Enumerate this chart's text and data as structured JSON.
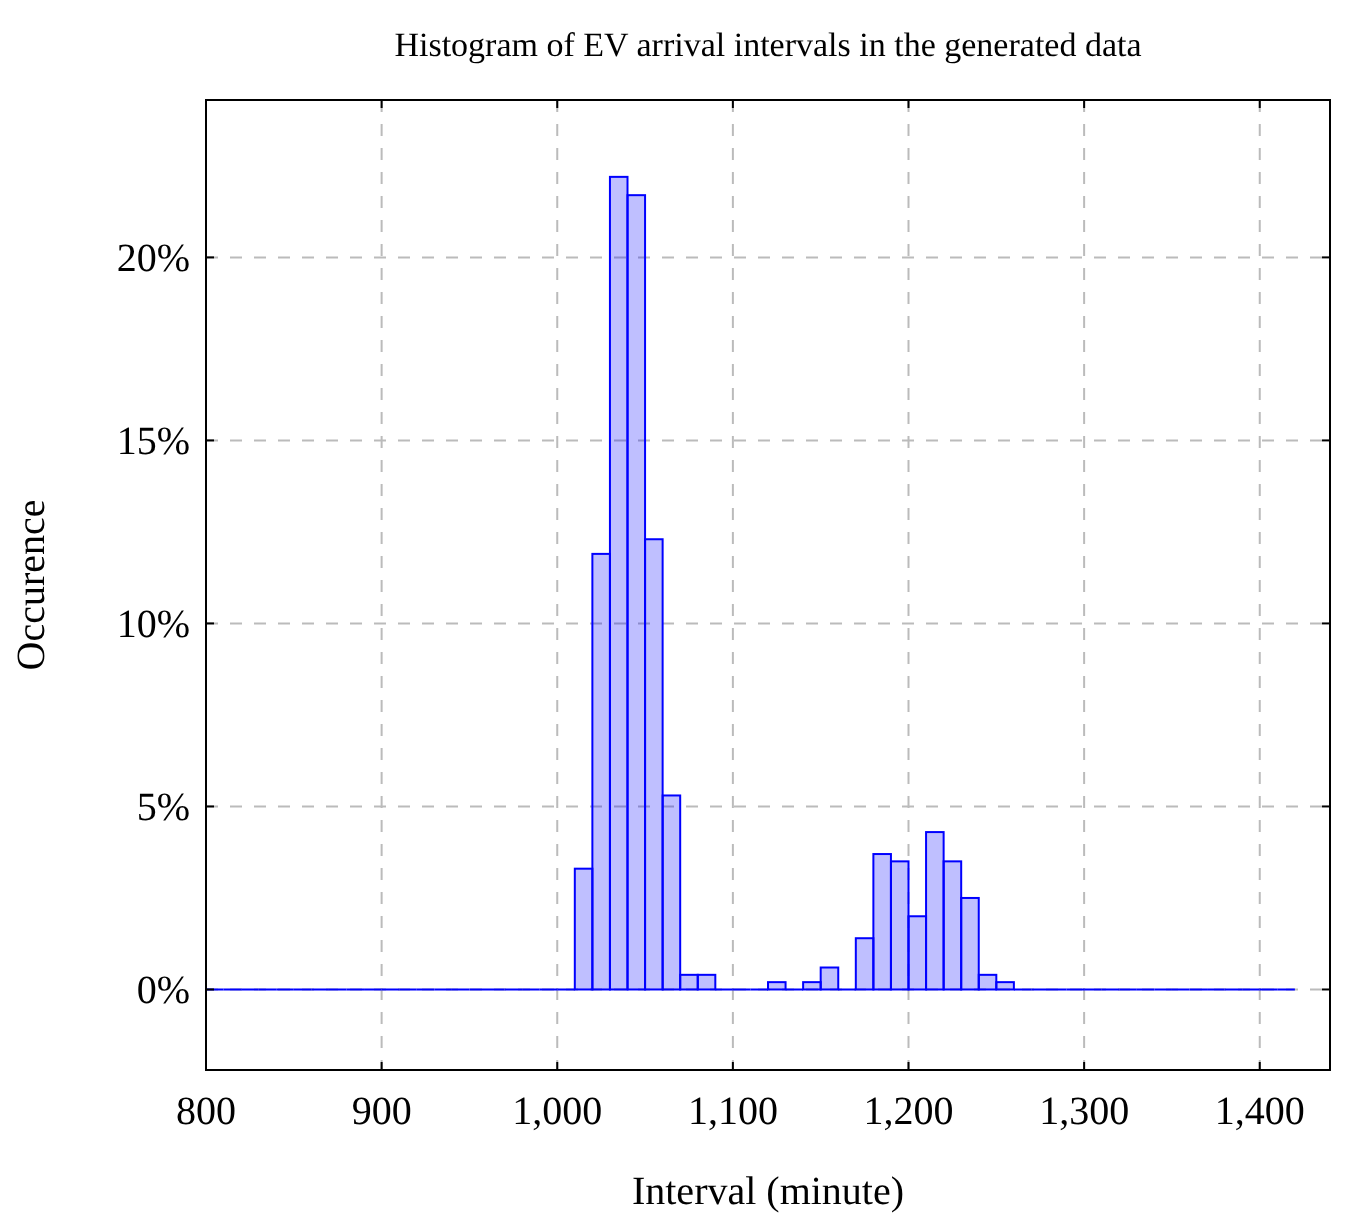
{
  "chart_data": {
    "type": "histogram",
    "title": "Histogram of EV arrival intervals in the generated data",
    "xlabel": "Interval (minute)",
    "ylabel": "Occurence",
    "color": "#0000ff",
    "bins": [
      800,
      810,
      820,
      830,
      840,
      850,
      860,
      870,
      880,
      890,
      900,
      910,
      920,
      930,
      940,
      950,
      960,
      970,
      980,
      990,
      1000,
      1010,
      1020,
      1030,
      1040,
      1050,
      1060,
      1070,
      1080,
      1090,
      1100,
      1110,
      1120,
      1130,
      1140,
      1150,
      1160,
      1170,
      1180,
      1190,
      1200,
      1210,
      1220,
      1230,
      1240,
      1250,
      1260,
      1270,
      1280,
      1290,
      1300,
      1310,
      1320,
      1330,
      1340,
      1350,
      1360,
      1370,
      1380,
      1390,
      1400,
      1410,
      1420
    ],
    "values": [
      0,
      0,
      0,
      0,
      0,
      0,
      0,
      0,
      0,
      0,
      0,
      0,
      0,
      0,
      0,
      0,
      0,
      0,
      0,
      0,
      0,
      3.3,
      11.9,
      22.2,
      21.7,
      12.3,
      5.3,
      0.4,
      0.4,
      0,
      0,
      0,
      0.2,
      0,
      0.2,
      0.6,
      0,
      1.4,
      3.7,
      3.5,
      2,
      4.3,
      3.5,
      2.5,
      0.4,
      0.2,
      0,
      0,
      0,
      0,
      0,
      0,
      0,
      0,
      0,
      0,
      0,
      0,
      0,
      0,
      0,
      0
    ],
    "xlim": [
      800,
      1440
    ],
    "xticks": [
      {
        "value": 800,
        "label": "800"
      },
      {
        "value": 900,
        "label": "900"
      },
      {
        "value": 1000,
        "label": "1,000"
      },
      {
        "value": 1100,
        "label": "1,100"
      },
      {
        "value": 1200,
        "label": "1,200"
      },
      {
        "value": 1300,
        "label": "1,300"
      },
      {
        "value": 1400,
        "label": "1,400"
      }
    ],
    "ylim": [
      -2.2,
      24.3
    ],
    "yticks": [
      {
        "value": 0,
        "label": "0%"
      },
      {
        "value": 5,
        "label": "5%"
      },
      {
        "value": 10,
        "label": "10%"
      },
      {
        "value": 15,
        "label": "15%"
      },
      {
        "value": 20,
        "label": "20%"
      }
    ],
    "grid": true
  }
}
